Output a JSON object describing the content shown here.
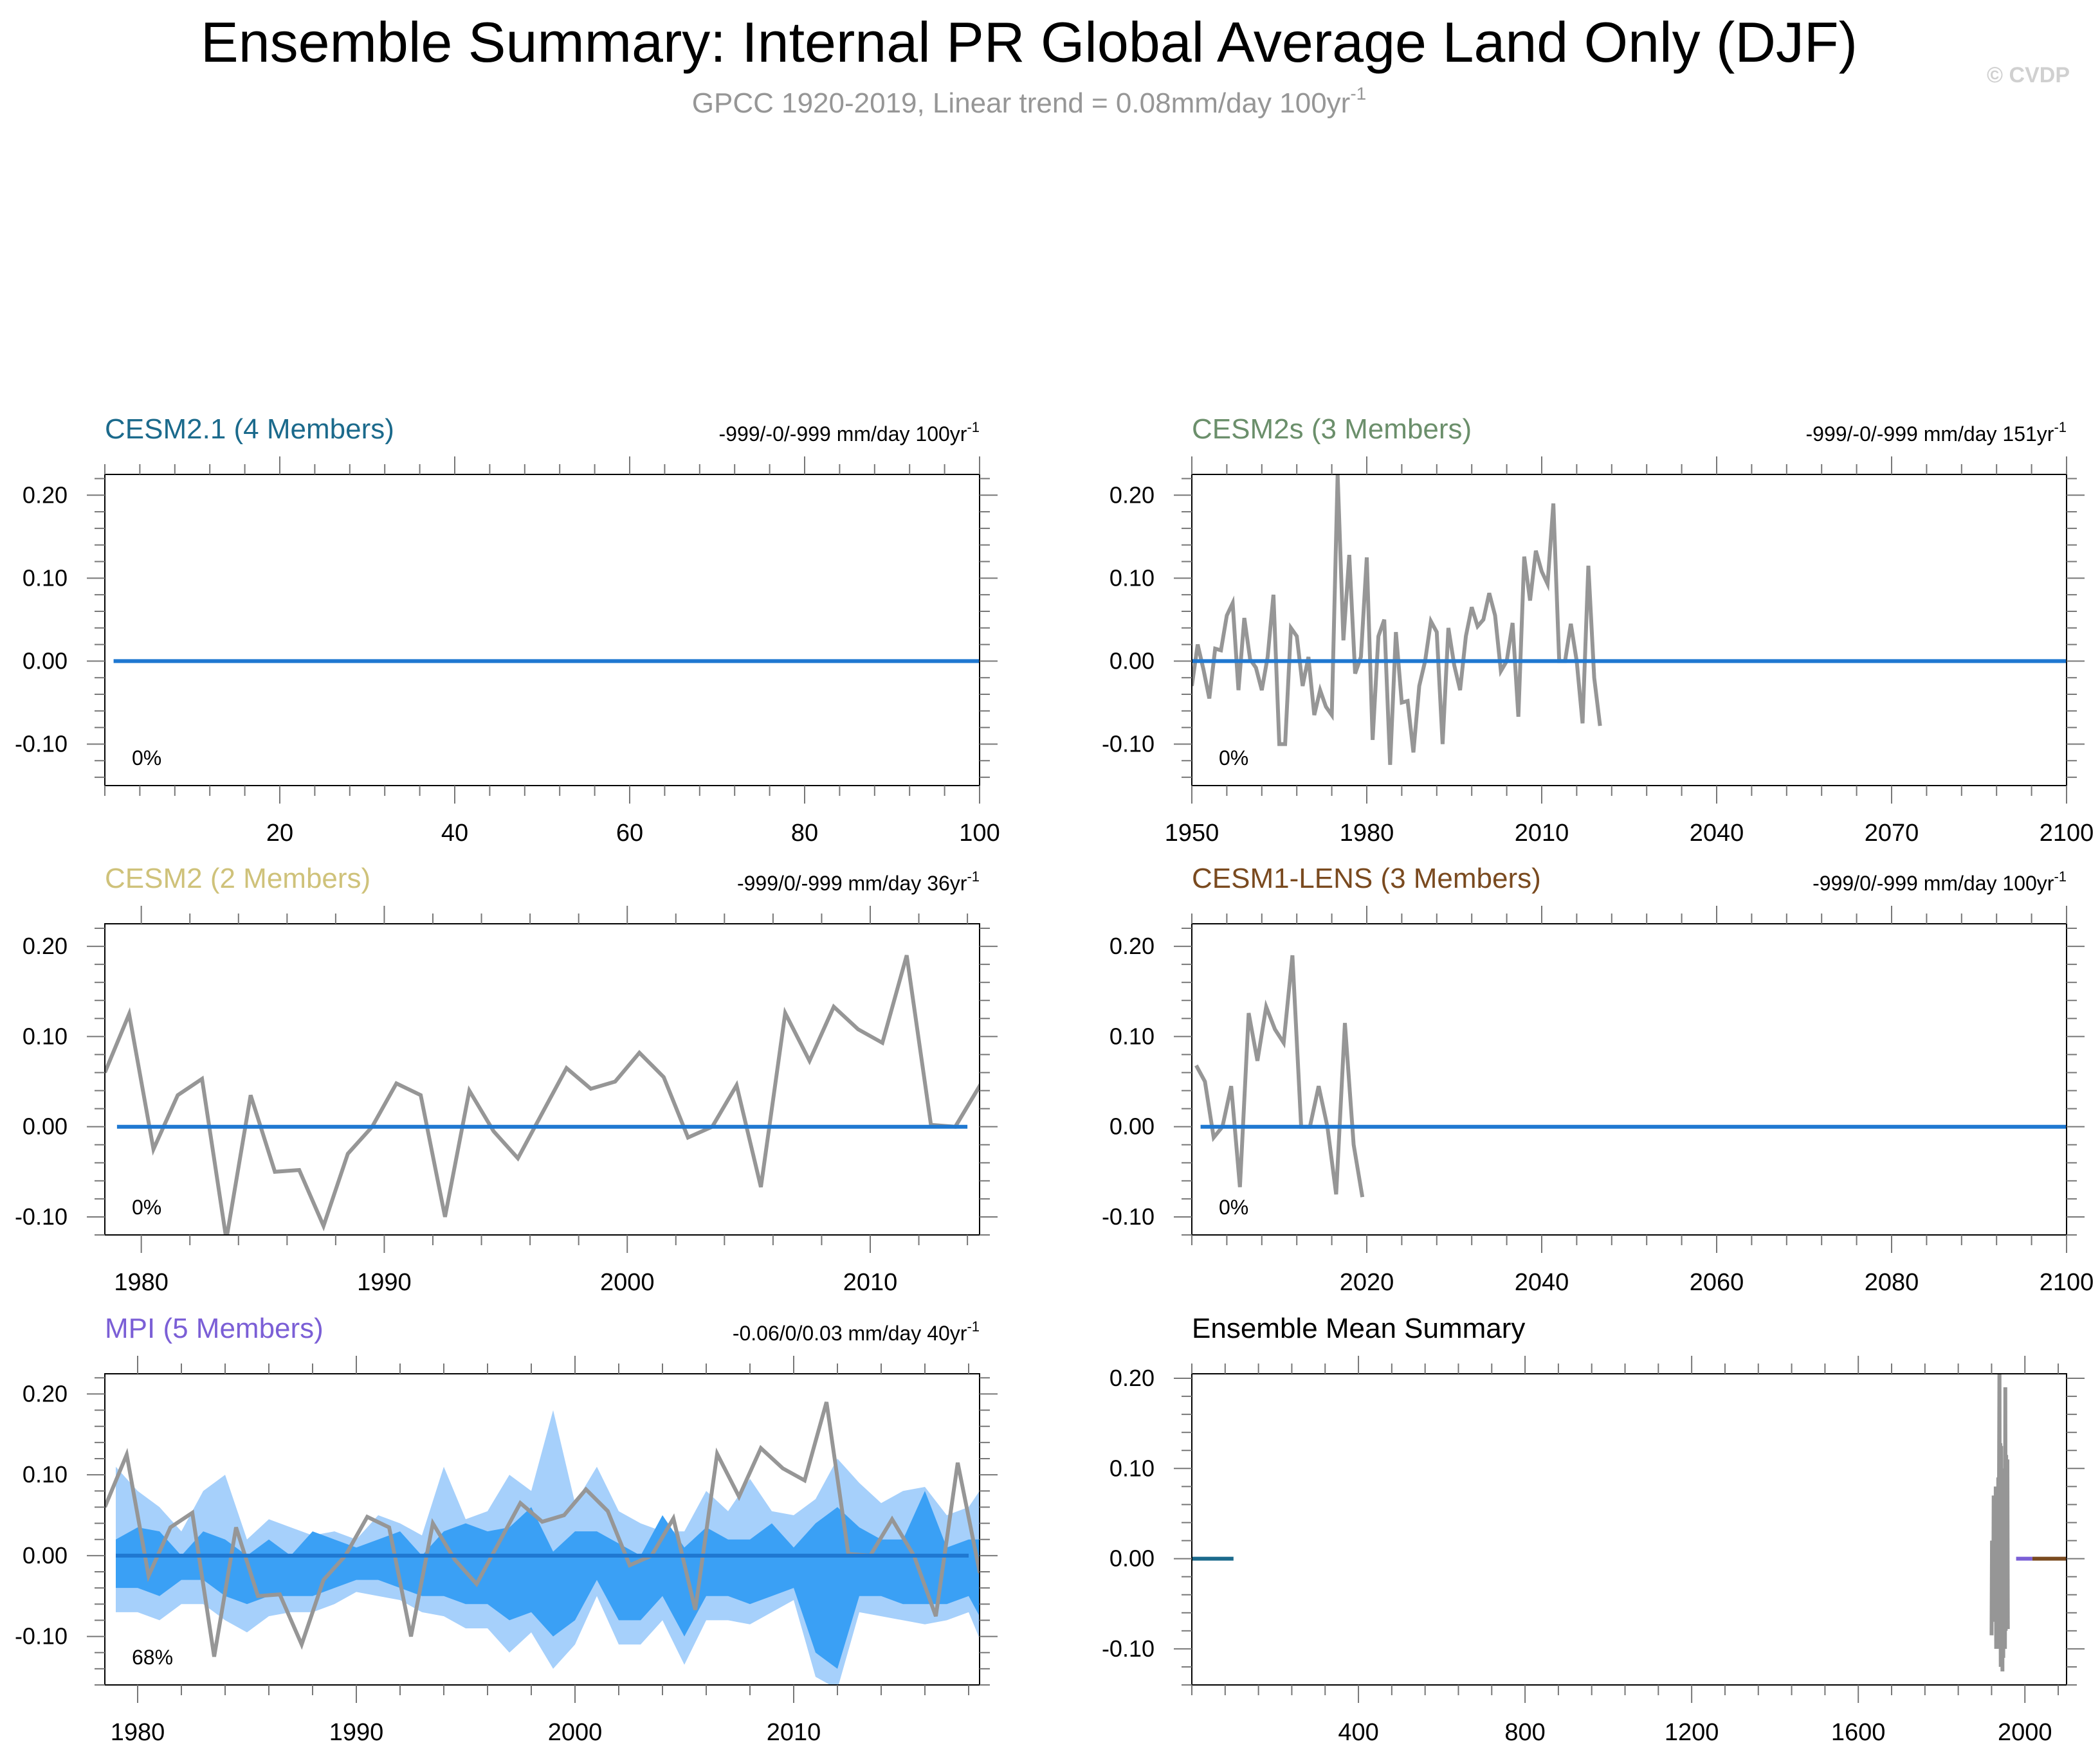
{
  "header": {
    "title": "Ensemble Summary: Internal PR Global Average Land Only (DJF)",
    "subtitle_main": "GPCC 1920-2019, Linear trend = 0.08mm/day 100yr",
    "subtitle_sup": "-1",
    "copyright": "© CVDP"
  },
  "colors": {
    "grey_obs": "#969696",
    "blue_mean": "#1f78d1",
    "band_outer": "#a6d0fb",
    "band_inner": "#3aa0f5",
    "cesm21": "#1b6a8c",
    "cesm2s": "#6b8f6b",
    "cesm2": "#cfc27a",
    "cesm1": "#7a4a1f",
    "mpi": "#7b5fd6"
  },
  "chart_data": [
    {
      "type": "line",
      "title": "CESM2.1 (4 Members)",
      "title_color": "#1b6a8c",
      "stats": "-999/-0/-999 mm/day 100yr",
      "stats_sup": "-1",
      "percent": "0%",
      "xlim": [
        0,
        100
      ],
      "ylim": [
        -0.15,
        0.225
      ],
      "x_ticks": [
        20,
        40,
        60,
        80,
        100
      ],
      "x_tick_labels": [
        "20",
        "40",
        "60",
        "80",
        "100"
      ],
      "y_ticks": [
        -0.1,
        0.0,
        0.1,
        0.2
      ],
      "y_tick_labels": [
        "-0.10",
        "0.00",
        "0.10",
        "0.20"
      ],
      "series": [
        {
          "color": "#1f78d1",
          "x": [
            1,
            100
          ],
          "values": [
            0,
            0
          ]
        }
      ]
    },
    {
      "type": "line",
      "title": "CESM2s (3 Members)",
      "title_color": "#6b8f6b",
      "stats": "-999/-0/-999 mm/day 151yr",
      "stats_sup": "-1",
      "percent": "0%",
      "xlim": [
        1950,
        2100
      ],
      "ylim": [
        -0.15,
        0.225
      ],
      "x_ticks": [
        1950,
        1980,
        2010,
        2040,
        2070,
        2100
      ],
      "x_tick_labels": [
        "1950",
        "1980",
        "2010",
        "2040",
        "2070",
        "2100"
      ],
      "y_ticks": [
        -0.1,
        0.0,
        0.1,
        0.2
      ],
      "y_tick_labels": [
        "-0.10",
        "0.00",
        "0.10",
        "0.20"
      ],
      "series": [
        {
          "color": "#969696",
          "x_start": 1950,
          "values": [
            -0.03,
            0.02,
            -0.01,
            -0.045,
            0.015,
            0.013,
            0.055,
            0.07,
            -0.035,
            0.052,
            0.002,
            -0.008,
            -0.035,
            0.005,
            0.08,
            -0.1,
            -0.1,
            0.04,
            0.03,
            -0.03,
            0.005,
            -0.065,
            -0.035,
            -0.055,
            -0.065,
            0.225,
            0.025,
            0.128,
            -0.015,
            0.005,
            0.125,
            -0.095,
            0.03,
            0.05,
            -0.125,
            0.035,
            -0.05,
            -0.048,
            -0.11,
            -0.03,
            0.0,
            0.048,
            0.035,
            -0.1,
            0.04,
            -0.005,
            -0.035,
            0.03,
            0.065,
            0.042,
            0.05,
            0.082,
            0.055,
            -0.012,
            0.0,
            0.046,
            -0.067,
            0.126,
            0.073,
            0.133,
            0.108,
            0.093,
            0.19,
            0.0,
            0.0,
            0.045,
            0.0,
            -0.075,
            0.115,
            -0.02,
            -0.078
          ]
        },
        {
          "color": "#1f78d1",
          "x": [
            1950,
            2100
          ],
          "values": [
            0,
            0
          ]
        }
      ]
    },
    {
      "type": "line",
      "title": "CESM2 (2 Members)",
      "title_color": "#cfc27a",
      "stats": "-999/0/-999 mm/day 36yr",
      "stats_sup": "-1",
      "percent": "0%",
      "xlim": [
        1978.5,
        2014.5
      ],
      "ylim": [
        -0.12,
        0.225
      ],
      "x_ticks": [
        1980,
        1990,
        2000,
        2010
      ],
      "x_tick_labels": [
        "1980",
        "1990",
        "2000",
        "2010"
      ],
      "y_ticks": [
        -0.1,
        0.0,
        0.1,
        0.2
      ],
      "y_tick_labels": [
        "-0.10",
        "0.00",
        "0.10",
        "0.20"
      ],
      "series": [
        {
          "color": "#969696",
          "x_start": 1978.5,
          "values": [
            0.06,
            0.125,
            -0.025,
            0.035,
            0.053,
            -0.125,
            0.035,
            -0.05,
            -0.048,
            -0.11,
            -0.03,
            0.0,
            0.048,
            0.035,
            -0.1,
            0.04,
            -0.005,
            -0.035,
            0.015,
            0.065,
            0.042,
            0.05,
            0.082,
            0.055,
            -0.012,
            0.0,
            0.046,
            -0.067,
            0.126,
            0.073,
            0.133,
            0.108,
            0.093,
            0.19,
            0.002,
            0.0,
            0.045,
            0.02
          ]
        },
        {
          "color": "#1f78d1",
          "x": [
            1979,
            2014
          ],
          "values": [
            0,
            0
          ]
        }
      ]
    },
    {
      "type": "line",
      "title": "CESM1-LENS (3 Members)",
      "title_color": "#7a4a1f",
      "stats": "-999/0/-999 mm/day 100yr",
      "stats_sup": "-1",
      "percent": "0%",
      "xlim": [
        2000,
        2100
      ],
      "ylim": [
        -0.12,
        0.225
      ],
      "x_ticks": [
        2020,
        2040,
        2060,
        2080,
        2100
      ],
      "x_tick_labels": [
        "2020",
        "2040",
        "2060",
        "2080",
        "2100"
      ],
      "y_ticks": [
        -0.1,
        0.0,
        0.1,
        0.2
      ],
      "y_tick_labels": [
        "-0.10",
        "0.00",
        "0.10",
        "0.20"
      ],
      "series": [
        {
          "color": "#969696",
          "x_start": 2000.5,
          "values": [
            0.068,
            0.05,
            -0.012,
            0.0,
            0.045,
            -0.067,
            0.126,
            0.073,
            0.133,
            0.108,
            0.093,
            0.19,
            0.0,
            0.0,
            0.045,
            0.0,
            -0.075,
            0.115,
            -0.02,
            -0.078
          ]
        },
        {
          "color": "#1f78d1",
          "x": [
            2001,
            2100
          ],
          "values": [
            0,
            0
          ]
        }
      ]
    },
    {
      "type": "area",
      "title": "MPI (5 Members)",
      "title_color": "#7b5fd6",
      "stats": "-0.06/0/0.03 mm/day 40yr",
      "stats_sup": "-1",
      "percent": "68%",
      "xlim": [
        1978.5,
        2018.5
      ],
      "ylim": [
        -0.16,
        0.225
      ],
      "x_ticks": [
        1980,
        1990,
        2000,
        2010
      ],
      "x_tick_labels": [
        "1980",
        "1990",
        "2000",
        "2010"
      ],
      "y_ticks": [
        -0.1,
        0.0,
        0.1,
        0.2
      ],
      "y_tick_labels": [
        "-0.10",
        "0.00",
        "0.10",
        "0.20"
      ],
      "bands": {
        "x_start": 1979,
        "outer_upper": [
          0.11,
          0.08,
          0.06,
          0.03,
          0.08,
          0.1,
          0.02,
          0.045,
          0.035,
          0.025,
          0.03,
          0.02,
          0.05,
          0.04,
          0.025,
          0.11,
          0.045,
          0.055,
          0.1,
          0.08,
          0.18,
          0.065,
          0.11,
          0.055,
          0.04,
          0.03,
          0.03,
          0.08,
          0.055,
          0.095,
          0.055,
          0.05,
          0.07,
          0.12,
          0.09,
          0.065,
          0.08,
          0.085,
          0.05,
          0.06,
          0.1
        ],
        "outer_lower": [
          -0.07,
          -0.07,
          -0.08,
          -0.06,
          -0.06,
          -0.08,
          -0.095,
          -0.075,
          -0.07,
          -0.07,
          -0.06,
          -0.045,
          -0.05,
          -0.055,
          -0.07,
          -0.075,
          -0.09,
          -0.09,
          -0.12,
          -0.095,
          -0.14,
          -0.11,
          -0.05,
          -0.11,
          -0.11,
          -0.08,
          -0.135,
          -0.08,
          -0.08,
          -0.085,
          -0.07,
          -0.055,
          -0.15,
          -0.165,
          -0.07,
          -0.075,
          -0.08,
          -0.085,
          -0.08,
          -0.07,
          -0.135
        ],
        "inner_upper": [
          0.02,
          0.035,
          0.03,
          0.0,
          0.03,
          0.02,
          0.0,
          0.02,
          0.0,
          0.03,
          0.02,
          0.01,
          0.02,
          0.03,
          0.0,
          0.03,
          0.04,
          0.03,
          0.035,
          0.06,
          0.005,
          0.03,
          0.03,
          0.015,
          0.0,
          0.05,
          0.01,
          0.035,
          0.02,
          0.02,
          0.04,
          0.01,
          0.04,
          0.06,
          0.035,
          0.02,
          0.02,
          0.08,
          0.01,
          0.02,
          0.02
        ],
        "inner_lower": [
          -0.04,
          -0.04,
          -0.05,
          -0.03,
          -0.03,
          -0.05,
          -0.06,
          -0.05,
          -0.05,
          -0.05,
          -0.04,
          -0.03,
          -0.03,
          -0.04,
          -0.05,
          -0.05,
          -0.06,
          -0.06,
          -0.08,
          -0.07,
          -0.1,
          -0.08,
          -0.03,
          -0.08,
          -0.08,
          -0.05,
          -0.1,
          -0.05,
          -0.05,
          -0.06,
          -0.05,
          -0.04,
          -0.12,
          -0.14,
          -0.05,
          -0.05,
          -0.06,
          -0.06,
          -0.06,
          -0.05,
          -0.1
        ]
      },
      "series": [
        {
          "color": "#969696",
          "x_start": 1978.5,
          "values": [
            0.06,
            0.125,
            -0.025,
            0.035,
            0.053,
            -0.125,
            0.035,
            -0.05,
            -0.048,
            -0.11,
            -0.03,
            0.0,
            0.048,
            0.035,
            -0.1,
            0.04,
            -0.005,
            -0.035,
            0.015,
            0.065,
            0.042,
            0.05,
            0.082,
            0.055,
            -0.012,
            0.0,
            0.046,
            -0.067,
            0.126,
            0.073,
            0.133,
            0.108,
            0.093,
            0.19,
            0.002,
            0.0,
            0.045,
            0.0,
            -0.075,
            0.115,
            -0.02,
            -0.048
          ]
        },
        {
          "color": "#1f78d1",
          "x": [
            1979,
            2018
          ],
          "values": [
            0,
            0
          ]
        }
      ]
    },
    {
      "type": "line",
      "title": "Ensemble Mean Summary",
      "title_color": "#000000",
      "stats": "",
      "stats_sup": "",
      "percent": "",
      "xlim": [
        0,
        2100
      ],
      "ylim": [
        -0.14,
        0.205
      ],
      "x_ticks": [
        400,
        800,
        1200,
        1600,
        2000
      ],
      "x_tick_labels": [
        "400",
        "800",
        "1200",
        "1600",
        "2000"
      ],
      "y_ticks": [
        -0.1,
        0.0,
        0.1,
        0.2
      ],
      "y_tick_labels": [
        "-0.10",
        "0.00",
        "0.10",
        "0.20"
      ],
      "series": [
        {
          "color": "#1b6a8c",
          "x": [
            1,
            100
          ],
          "values": [
            0,
            0
          ]
        },
        {
          "color": "#969696",
          "x_start": 1920,
          "values": [
            -0.085,
            0.02,
            -0.05,
            0.015,
            -0.07,
            0.07,
            -0.035,
            0.052,
            0.0,
            -0.06,
            0.08,
            -0.1,
            0.04,
            -0.08,
            0.07,
            -0.05,
            0.09,
            -0.055,
            0.1,
            0.225,
            -0.1,
            0.128,
            -0.12,
            0.125,
            -0.095,
            0.1,
            -0.125,
            0.09,
            -0.11,
            0.06,
            -0.09,
            0.08,
            -0.1,
            0.19,
            -0.08,
            0.115,
            -0.06,
            0.0,
            0.11,
            -0.078
          ]
        },
        {
          "color": "#7b5fd6",
          "x": [
            1979,
            2018
          ],
          "values": [
            0,
            0
          ]
        },
        {
          "color": "#7a4a1f",
          "x": [
            2018,
            2100
          ],
          "values": [
            0,
            0
          ]
        }
      ]
    }
  ]
}
